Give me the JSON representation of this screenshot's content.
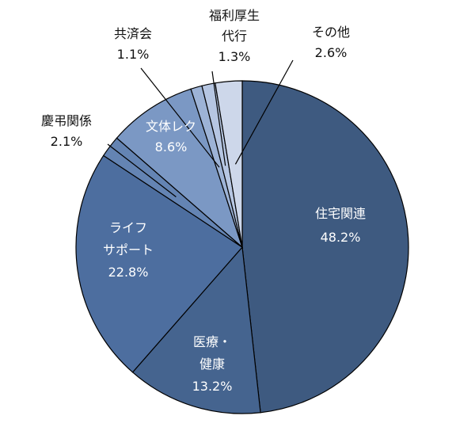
{
  "chart_data": {
    "type": "pie",
    "title": "",
    "start_angle_deg": 0,
    "direction": "clockwise",
    "slices": [
      {
        "key": "jutaku",
        "lines": [
          "住宅関連"
        ],
        "value_label": "48.2%",
        "value": 48.2,
        "color": "#3e5a80"
      },
      {
        "key": "iryo",
        "lines": [
          "医療・",
          "健康"
        ],
        "value_label": "13.2%",
        "value": 13.2,
        "color": "#45648f"
      },
      {
        "key": "life",
        "lines": [
          "ライフ",
          "サポート"
        ],
        "value_label": "22.8%",
        "value": 22.8,
        "color": "#4d6e9f"
      },
      {
        "key": "keicho",
        "lines": [
          "慶弔関係"
        ],
        "value_label": "2.1%",
        "value": 2.1,
        "color": "#6484b3"
      },
      {
        "key": "bunka",
        "lines": [
          "文体レク"
        ],
        "value_label": "8.6%",
        "value": 8.6,
        "color": "#7b98c4"
      },
      {
        "key": "kyosai",
        "lines": [
          "共済会"
        ],
        "value_label": "1.1%",
        "value": 1.1,
        "color": "#9db3d6"
      },
      {
        "key": "fukuri",
        "lines": [
          "福利厚生",
          "代行"
        ],
        "value_label": "1.3%",
        "value": 1.3,
        "color": "#b6c6e2"
      },
      {
        "key": "sonota",
        "lines": [
          "その他"
        ],
        "value_label": "2.6%",
        "value": 2.6,
        "color": "#cdd7ea"
      }
    ]
  }
}
